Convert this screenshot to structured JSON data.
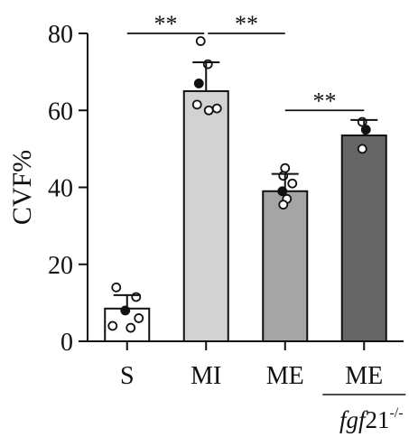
{
  "chart_data": {
    "type": "bar",
    "ylabel": "CVF%",
    "ylim": [
      0,
      80
    ],
    "yticks": [
      0,
      20,
      40,
      60,
      80
    ],
    "grid": false,
    "categories": [
      {
        "label": "S",
        "sub": null
      },
      {
        "label": "MI",
        "sub": null
      },
      {
        "label": "ME",
        "sub": null
      },
      {
        "label": "ME",
        "sub": {
          "gene": "fgf",
          "num": "21",
          "sup": "-/-"
        }
      }
    ],
    "values": [
      8.5,
      65,
      39,
      53.5
    ],
    "errors": [
      3.5,
      7.5,
      4.5,
      4
    ],
    "colors": [
      "#ffffff",
      "#d2d2d2",
      "#a5a5a5",
      "#666666"
    ],
    "points": [
      [
        14,
        11.5,
        8,
        6,
        4,
        3.5
      ],
      [
        78,
        72,
        67,
        61.5,
        60.5,
        60
      ],
      [
        45,
        43,
        41,
        39,
        37,
        35.5
      ],
      [
        57,
        55,
        50
      ]
    ],
    "significance": [
      {
        "from": 0,
        "to": 1,
        "label": "**",
        "y": 80
      },
      {
        "from": 1,
        "to": 2,
        "label": "**",
        "y": 80
      },
      {
        "from": 2,
        "to": 3,
        "label": "**",
        "y": 60
      }
    ]
  }
}
